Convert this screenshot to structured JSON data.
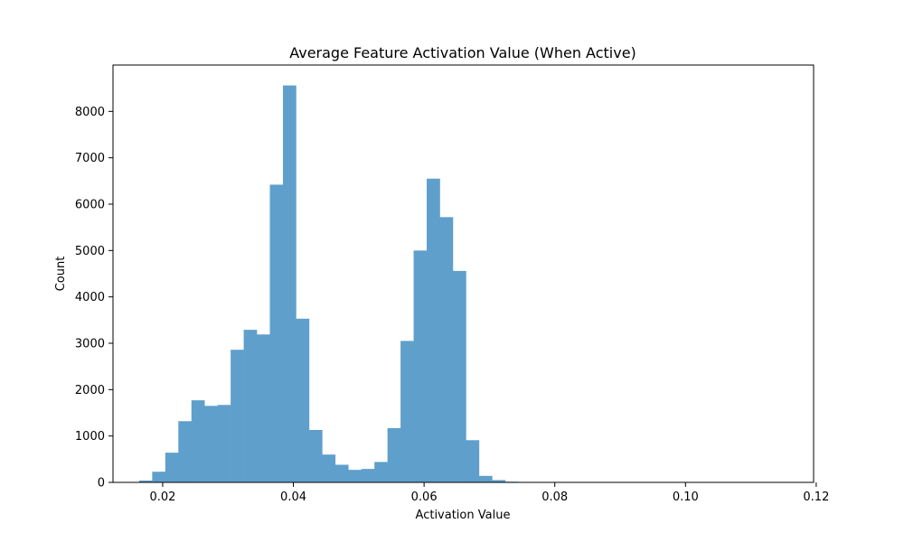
{
  "chart_data": {
    "type": "bar",
    "title": "Average Feature Activation Value (When Active)",
    "xlabel": "Activation Value",
    "ylabel": "Count",
    "xlim": [
      0.0124,
      0.1196
    ],
    "ylim": [
      0,
      9000
    ],
    "x_ticks": [
      0.02,
      0.04,
      0.06,
      0.08,
      0.1,
      0.12
    ],
    "x_tick_labels": [
      "0.02",
      "0.04",
      "0.06",
      "0.08",
      "0.10",
      "0.12"
    ],
    "y_ticks": [
      0,
      1000,
      2000,
      3000,
      4000,
      5000,
      6000,
      7000,
      8000
    ],
    "y_tick_labels": [
      "0",
      "1000",
      "2000",
      "3000",
      "4000",
      "5000",
      "6000",
      "7000",
      "8000"
    ],
    "bar_color": "#5f9fcb",
    "bin_start": 0.0164,
    "bin_width": 0.002,
    "values": [
      40,
      230,
      640,
      1320,
      1770,
      1650,
      1670,
      2860,
      3290,
      3190,
      6420,
      8560,
      3530,
      1130,
      600,
      380,
      270,
      290,
      440,
      1170,
      3050,
      5000,
      6550,
      5720,
      4560,
      910,
      140,
      50,
      15,
      5,
      5,
      5,
      3,
      3,
      2,
      2,
      2,
      2,
      2,
      2,
      2,
      1,
      1,
      1,
      1,
      1,
      1,
      1,
      1,
      1
    ],
    "grid": false
  }
}
